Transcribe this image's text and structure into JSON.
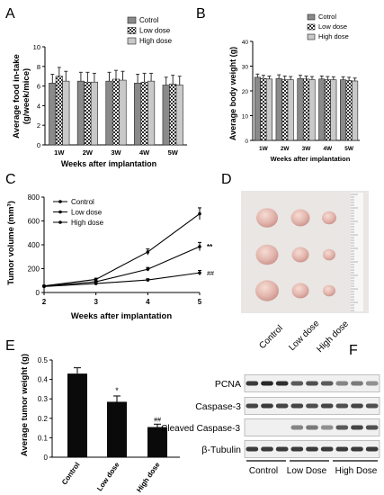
{
  "panels": {
    "A": "A",
    "B": "B",
    "C": "C",
    "D": "D",
    "E": "E",
    "F": "F"
  },
  "colors": {
    "control": "#8a8a8a",
    "low_dose_pattern": "#2e2e2e",
    "high_dose": "#c9c9c9",
    "bar_black": "#0a0a0a",
    "photo_bg": "#e9e6e4",
    "tumor": "#e2b5ac",
    "blot_bg": "#f0f0f0",
    "band": "#1a1a1a"
  },
  "chart_data": [
    {
      "panel": "A",
      "type": "bar",
      "categories": [
        "1W",
        "2W",
        "3W",
        "4W",
        "5W"
      ],
      "series": [
        {
          "name": "Cotrol",
          "values": [
            6.3,
            6.5,
            6.5,
            6.3,
            6.1
          ],
          "errors": [
            0.9,
            0.9,
            0.9,
            0.9,
            0.8
          ]
        },
        {
          "name": "Low dose",
          "values": [
            7.0,
            6.4,
            6.7,
            6.4,
            6.2
          ],
          "errors": [
            0.9,
            1.0,
            0.9,
            0.9,
            0.9
          ]
        },
        {
          "name": "High dose",
          "values": [
            6.5,
            6.4,
            6.6,
            6.5,
            6.1
          ],
          "errors": [
            1.0,
            0.9,
            0.9,
            0.8,
            0.9
          ]
        }
      ],
      "ylabel_line1": "Average food in-take",
      "ylabel_line2": "(g/week/mice)",
      "xlabel": "Weeks after implantation",
      "ylim": [
        0,
        10
      ],
      "yticks": [
        "0",
        "2",
        "4",
        "6",
        "8",
        "10"
      ],
      "legend": "top-right"
    },
    {
      "panel": "B",
      "type": "bar",
      "categories": [
        "1W",
        "2W",
        "3W",
        "4W",
        "5W"
      ],
      "series": [
        {
          "name": "Cotrol",
          "values": [
            25.5,
            25.0,
            25.0,
            24.8,
            24.5
          ],
          "errors": [
            1.3,
            1.5,
            1.3,
            1.2,
            1.2
          ]
        },
        {
          "name": "Low dose",
          "values": [
            25.0,
            24.5,
            24.8,
            24.5,
            24.2
          ],
          "errors": [
            1.3,
            1.5,
            1.2,
            1.3,
            1.3
          ]
        },
        {
          "name": "High dose",
          "values": [
            24.8,
            24.5,
            24.6,
            24.5,
            24.0
          ],
          "errors": [
            1.2,
            1.3,
            1.2,
            1.2,
            1.2
          ]
        }
      ],
      "ylabel": "Average body weight (g)",
      "xlabel": "Weeks after implantation",
      "ylim": [
        0,
        40
      ],
      "yticks": [
        "0",
        "10",
        "20",
        "30",
        "40"
      ],
      "legend": "top-right"
    },
    {
      "panel": "C",
      "type": "line",
      "x": [
        2,
        3,
        4,
        5
      ],
      "xticks": [
        "2",
        "3",
        "4",
        "5"
      ],
      "series": [
        {
          "name": "Control",
          "values": [
            55,
            110,
            340,
            660
          ],
          "errors": [
            5,
            10,
            25,
            50
          ]
        },
        {
          "name": "Low dose",
          "values": [
            52,
            90,
            195,
            385
          ],
          "errors": [
            4,
            8,
            15,
            35
          ]
        },
        {
          "name": "High dose",
          "values": [
            50,
            75,
            105,
            165
          ],
          "errors": [
            4,
            6,
            10,
            20
          ]
        }
      ],
      "ylabel": "Tumor volume (mm³)",
      "xlabel": "Weeks after implantation",
      "xlim": [
        2,
        5
      ],
      "ylim": [
        0,
        800
      ],
      "yticks": [
        "0",
        "200",
        "400",
        "600",
        "800"
      ],
      "annotations": [
        "**",
        "##"
      ],
      "legend": "top-left"
    },
    {
      "panel": "E",
      "type": "bar",
      "categories": [
        "Control",
        "Low dose",
        "High dose"
      ],
      "values": [
        0.43,
        0.285,
        0.155
      ],
      "errors": [
        0.03,
        0.03,
        0.015
      ],
      "annotations": [
        "",
        "*",
        "##"
      ],
      "ylabel": "Average tumor weight (g)",
      "ylim": [
        0,
        0.5
      ],
      "yticks": [
        "0",
        "0.1",
        "0.2",
        "0.3",
        "0.4",
        "0.5"
      ]
    }
  ],
  "photo": {
    "labels": [
      "Control",
      "Low dose",
      "High dose"
    ]
  },
  "blot": {
    "rows": [
      "PCNA",
      "Caspase-3",
      "Cleaved Caspase-3",
      "β-Tubulin"
    ],
    "groups": [
      "Control",
      "Low Dose",
      "High Dose"
    ],
    "band_intensity": [
      [
        0.85,
        0.95,
        0.9,
        0.7,
        0.75,
        0.7,
        0.5,
        0.55,
        0.45
      ],
      [
        0.8,
        0.85,
        0.8,
        0.8,
        0.75,
        0.8,
        0.75,
        0.8,
        0.75
      ],
      [
        0,
        0,
        0,
        0.5,
        0.55,
        0.45,
        0.7,
        0.8,
        0.75
      ],
      [
        0.85,
        0.85,
        0.85,
        0.85,
        0.85,
        0.85,
        0.85,
        0.85,
        0.85
      ]
    ]
  }
}
